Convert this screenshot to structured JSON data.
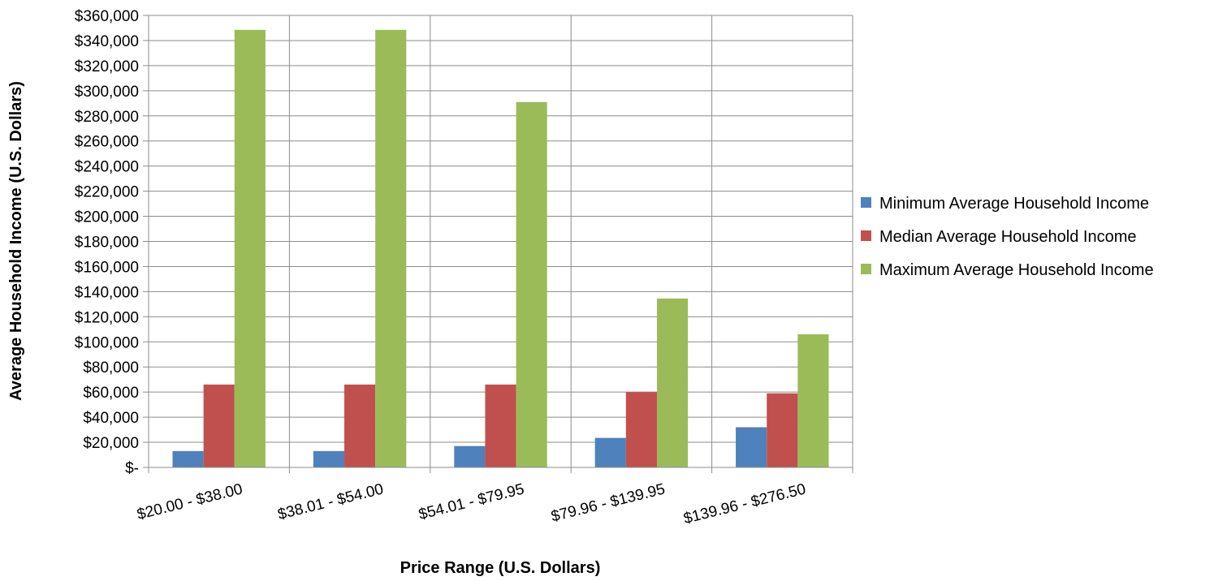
{
  "chart_data": {
    "type": "bar",
    "title": "",
    "xlabel": "Price Range (U.S. Dollars)",
    "ylabel": "Average Household Income (U.S. Dollars)",
    "categories": [
      "$20.00 - $38.00",
      "$38.01 - $54.00",
      "$54.01 - $79.95",
      "$79.96 - $139.95",
      "$139.96 - $276.50"
    ],
    "series": [
      {
        "name": "Minimum Average Household Income",
        "color": "#4f81bd",
        "values": [
          13000,
          13000,
          17000,
          23500,
          32000
        ]
      },
      {
        "name": "Median Average Household Income",
        "color": "#c0504d",
        "values": [
          66000,
          66000,
          66000,
          60000,
          59000
        ]
      },
      {
        "name": "Maximum Average Household Income",
        "color": "#9bbb59",
        "values": [
          348500,
          348500,
          291000,
          134500,
          106000
        ]
      }
    ],
    "ylim": [
      0,
      360000
    ],
    "ytick_step": 20000,
    "ytick_labels": [
      "$-",
      "$20,000",
      "$40,000",
      "$60,000",
      "$80,000",
      "$100,000",
      "$120,000",
      "$140,000",
      "$160,000",
      "$180,000",
      "$200,000",
      "$220,000",
      "$240,000",
      "$260,000",
      "$280,000",
      "$300,000",
      "$320,000",
      "$340,000",
      "$360,000"
    ],
    "grid": true,
    "legend_position": "right"
  }
}
